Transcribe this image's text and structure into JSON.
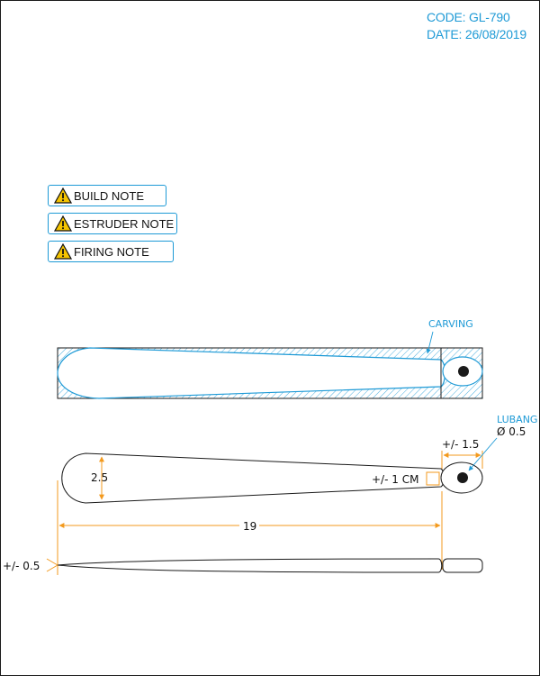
{
  "header": {
    "code": "CODE: GL-790",
    "date": "DATE: 26/08/2019"
  },
  "notes": [
    {
      "label": "BUILD NOTE",
      "icon": "warning-icon"
    },
    {
      "label": "ESTRUDER NOTE",
      "icon": "warning-icon"
    },
    {
      "label": "FIRING NOTE",
      "icon": "warning-icon"
    }
  ],
  "annotations": {
    "carving": "CARVING",
    "lubang": "LUBANG",
    "hole_diameter": "Ø 0.5",
    "tip_tolerance": "+/- 1.5",
    "width": "2.5",
    "gap_tolerance": "+/- 1 CM",
    "length": "19",
    "thickness_tolerance": "+/- 0.5"
  },
  "colors": {
    "accent": "#1e9ad6",
    "dimension": "#f39a1e",
    "warning": "#f5c400",
    "line": "#1a1a1a"
  }
}
